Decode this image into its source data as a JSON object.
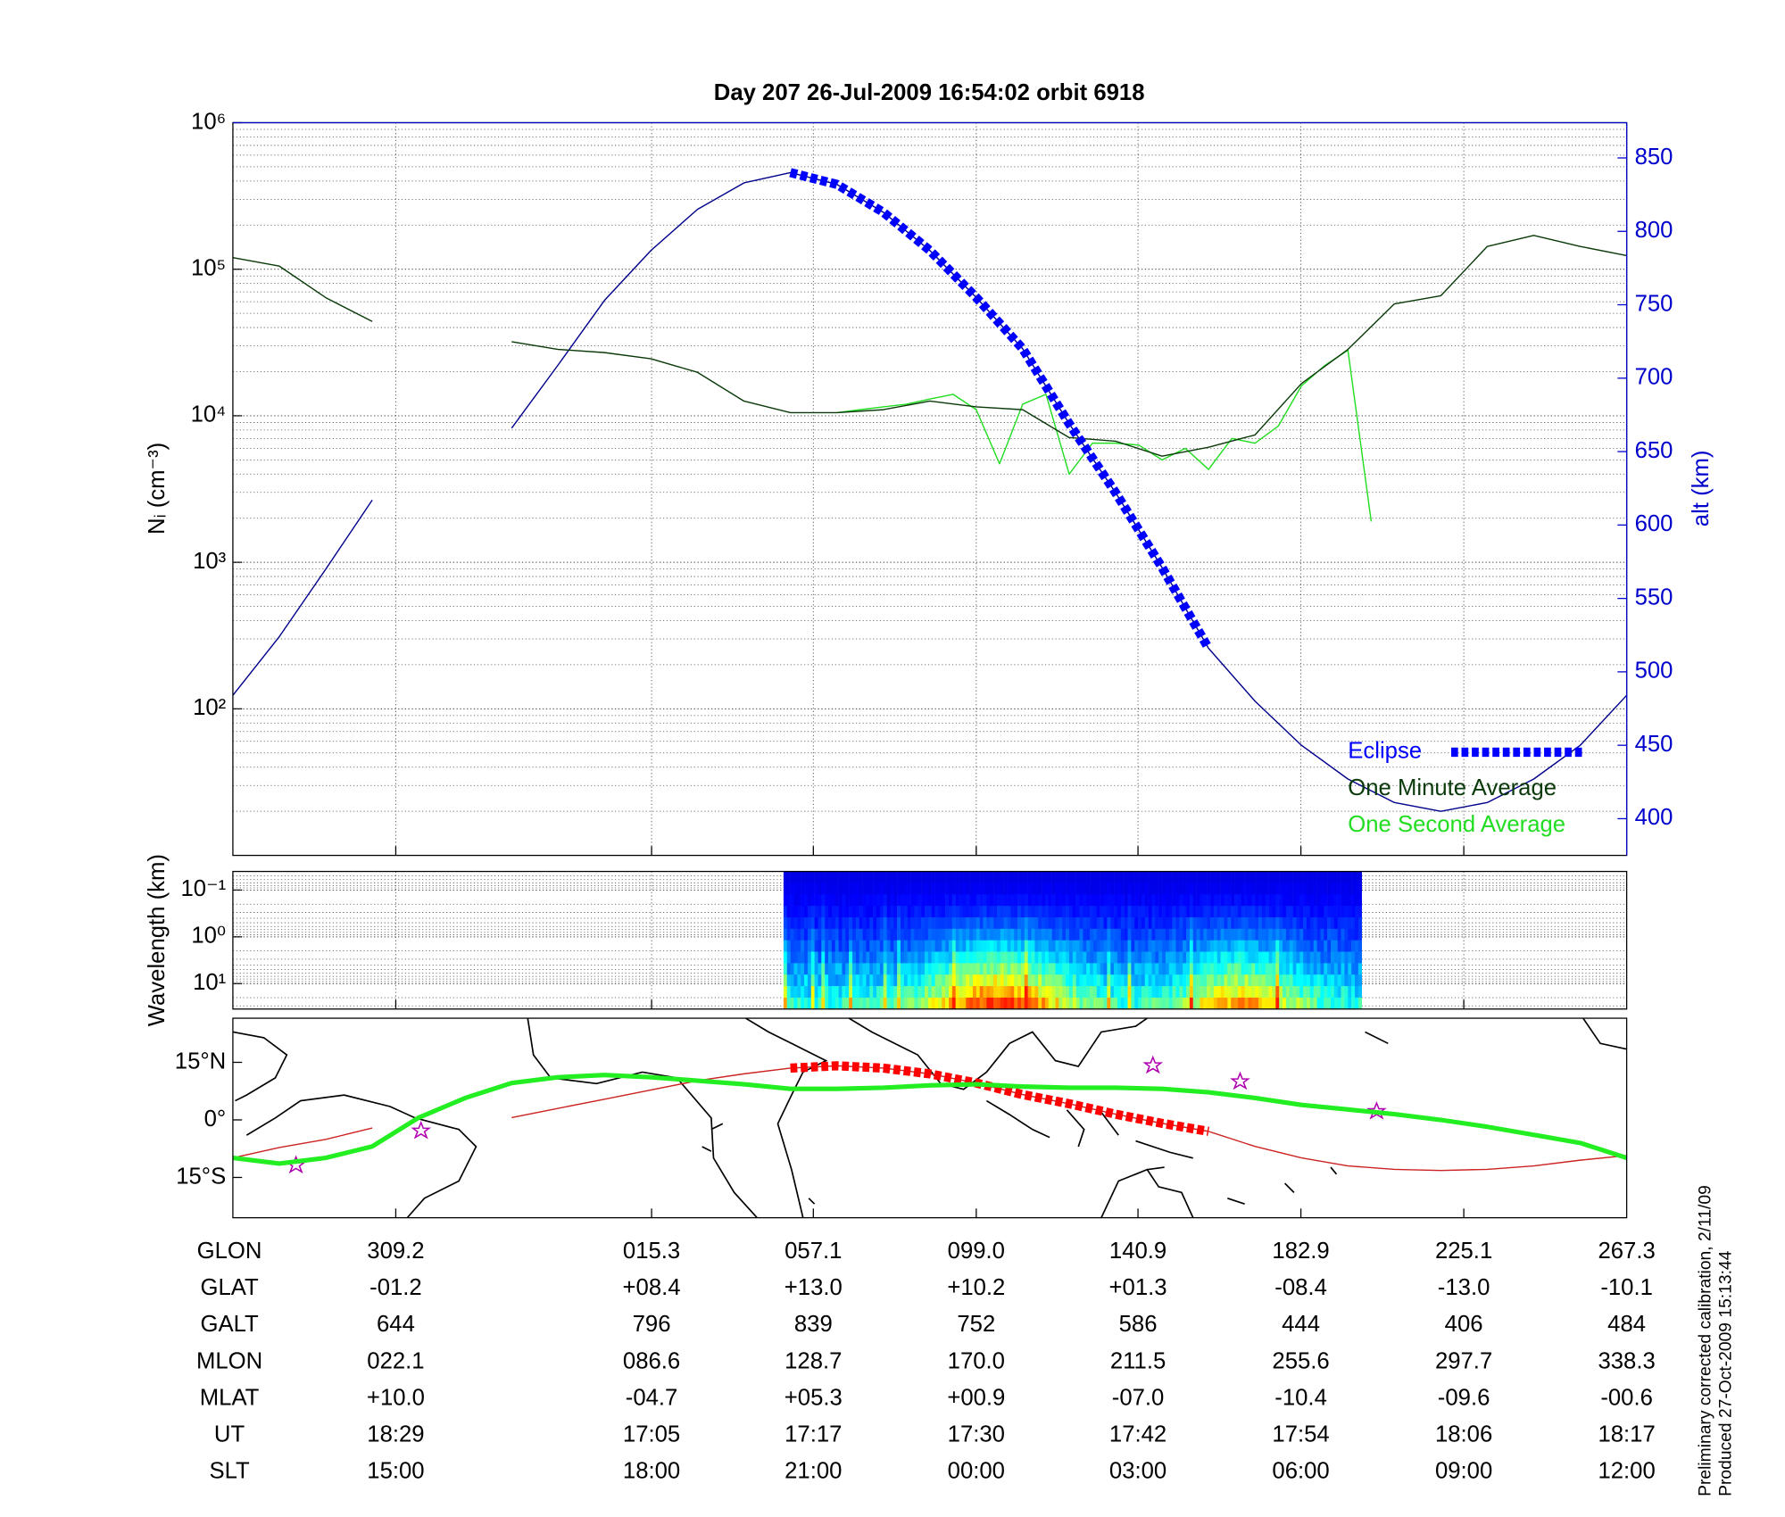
{
  "chart_data": [
    {
      "type": "line",
      "title": "Day 207  26-Jul-2009 16:54:02   orbit 6918",
      "ylabel": "Nᵢ (cm⁻³)",
      "y2label": "alt (km)",
      "ylog": true,
      "ylim": [
        10,
        1000000
      ],
      "yticks": [
        {
          "value": 100,
          "label": "10²"
        },
        {
          "value": 1000,
          "label": "10³"
        },
        {
          "value": 10000,
          "label": "10⁴"
        },
        {
          "value": 100000,
          "label": "10⁵"
        },
        {
          "value": 1000000,
          "label": "10⁶"
        }
      ],
      "y2lim": [
        375,
        874
      ],
      "y2ticks": [
        400,
        450,
        500,
        550,
        600,
        650,
        700,
        750,
        800,
        850
      ],
      "grid": true,
      "legend": "lower right",
      "series": [
        {
          "name": "Eclipse",
          "color": "#0000ff",
          "axis": "y2",
          "style": "dashed-thick",
          "values": [
            null,
            null,
            null,
            null,
            null,
            null,
            null,
            null,
            null,
            null,
            null,
            null,
            840,
            832,
            813,
            787,
            755,
            720,
            669,
            622,
            571,
            516,
            null,
            null,
            null,
            null,
            null,
            null,
            null,
            null,
            null
          ]
        },
        {
          "name": "One Minute Average",
          "color": "#0a3a0a",
          "values": [
            120000,
            105000,
            64000,
            44000,
            null,
            null,
            32000,
            28400,
            27000,
            24500,
            19800,
            12600,
            10500,
            10500,
            11000,
            12600,
            11500,
            11000,
            7100,
            6700,
            5300,
            6100,
            7400,
            16600,
            28400,
            58000,
            66000,
            143000,
            170000,
            143000,
            124000
          ]
        },
        {
          "name": "One Second Average",
          "color": "#22dd22",
          "values": [
            null,
            null,
            null,
            null,
            null,
            null,
            null,
            null,
            null,
            null,
            null,
            null,
            null,
            null,
            null,
            null,
            null,
            null,
            null,
            null,
            null,
            null,
            null,
            null,
            null,
            null,
            10500,
            11000,
            11500,
            12000,
            13000,
            14000,
            11000,
            4700,
            12000,
            14000,
            4000,
            6500,
            6500,
            6300,
            5000,
            6000,
            4300,
            7000,
            6500,
            8500,
            16000,
            22000,
            28000,
            1900,
            null,
            null,
            null,
            null,
            null,
            null,
            null,
            null,
            null,
            null,
            null
          ]
        },
        {
          "color": "#00008b",
          "axis": "y2",
          "values": [
            484,
            524,
            570,
            617,
            null,
            null,
            666,
            709,
            753,
            787,
            815,
            833,
            840,
            832,
            813,
            787,
            755,
            720,
            669,
            622,
            571,
            516,
            480,
            450,
            427,
            411,
            405,
            411,
            427,
            450,
            484
          ]
        }
      ]
    },
    {
      "type": "spectrogram",
      "ylabel": "Wavelength (km)",
      "ylog": true,
      "ylim": [
        35,
        0.04
      ],
      "yticks": [
        {
          "value": 0.1,
          "label": "10⁻¹"
        },
        {
          "value": 1,
          "label": "10⁰"
        },
        {
          "value": 10,
          "label": "10¹"
        }
      ]
    },
    {
      "type": "map",
      "ylim": [
        -25.5,
        26.5
      ],
      "yticks": [
        {
          "value": 15,
          "label": "15°N"
        },
        {
          "value": 0,
          "label": "0°"
        },
        {
          "value": -15,
          "label": "15°S"
        }
      ],
      "series": [
        {
          "color": "#cc2222",
          "values": [
            -9.9,
            -7.2,
            -5.1,
            -2.1,
            null,
            null,
            0.6,
            3,
            5.4,
            7.8,
            10.2,
            12,
            13.5,
            14.1,
            13.5,
            12,
            9.6,
            6.6,
            4.2,
            1.5,
            -0.9,
            -3,
            -6.9,
            -9.9,
            -12,
            -12.9,
            -13.2,
            -12.9,
            -12,
            -10.5,
            -9.3
          ]
        },
        {
          "color": "#ff0000",
          "style": "dashed-thick",
          "values": [
            null,
            null,
            null,
            null,
            null,
            null,
            null,
            null,
            null,
            null,
            null,
            null,
            13.5,
            14.1,
            13.5,
            12,
            9.6,
            6.6,
            4.2,
            1.5,
            -0.9,
            -3,
            null,
            null,
            null,
            null,
            null,
            null,
            null,
            null,
            null
          ]
        },
        {
          "color": "#22ee22",
          "style": "thick",
          "values": [
            -9.9,
            -11.4,
            -9.9,
            -6.9,
            0.6,
            5.7,
            9.6,
            11.1,
            11.7,
            11.1,
            10.2,
            9.3,
            8.1,
            8.1,
            8.4,
            9,
            9.3,
            8.7,
            8.4,
            8.4,
            8.1,
            7.2,
            5.7,
            3.9,
            2.7,
            1.5,
            0,
            -1.8,
            -3.9,
            -6,
            -9.9
          ]
        }
      ]
    }
  ],
  "table": {
    "rows": [
      {
        "label": "GLON",
        "values": [
          "309.2",
          "015.3",
          "057.1",
          "099.0",
          "140.9",
          "182.9",
          "225.1",
          "267.3"
        ]
      },
      {
        "label": "GLAT",
        "values": [
          "-01.2",
          "+08.4",
          "+13.0",
          "+10.2",
          "+01.3",
          "-08.4",
          "-13.0",
          "-10.1"
        ]
      },
      {
        "label": "GALT",
        "values": [
          "644",
          "796",
          "839",
          "752",
          "586",
          "444",
          "406",
          "484"
        ]
      },
      {
        "label": "MLON",
        "values": [
          "022.1",
          "086.6",
          "128.7",
          "170.0",
          "211.5",
          "255.6",
          "297.7",
          "338.3"
        ]
      },
      {
        "label": "MLAT",
        "values": [
          "+10.0",
          "-04.7",
          "+05.3",
          "+00.9",
          "-07.0",
          "-10.4",
          "-09.6",
          "-00.6"
        ]
      },
      {
        "label": "UT",
        "values": [
          "18:29",
          "17:05",
          "17:17",
          "17:30",
          "17:42",
          "17:54",
          "18:06",
          "18:17"
        ]
      },
      {
        "label": "SLT",
        "values": [
          "15:00",
          "18:00",
          "21:00",
          "00:00",
          "03:00",
          "06:00",
          "09:00",
          "12:00"
        ]
      }
    ]
  },
  "footnote": [
    "Preliminary corrected calibration, 2/11/09",
    "Produced 27-Oct-2009 15:13:44"
  ]
}
